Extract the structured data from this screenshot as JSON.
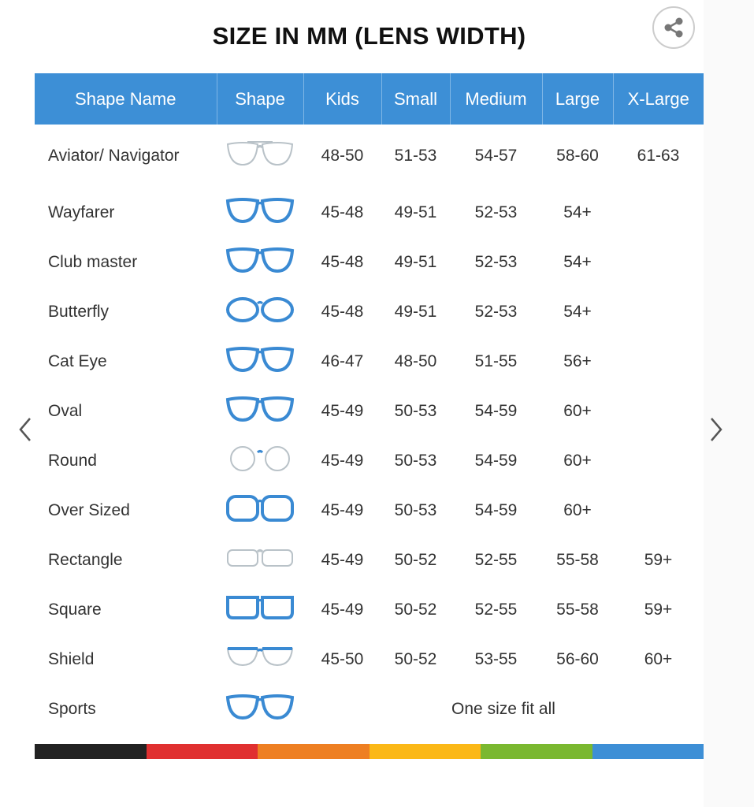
{
  "title": "SIZE IN MM (LENS WIDTH)",
  "share_icon": "share-icon",
  "nav": {
    "prev_icon": "chevron-left-icon",
    "next_icon": "chevron-right-icon"
  },
  "colors": {
    "header": "#3d8fd6",
    "frame_blue": "#3a8ad3",
    "frame_gray": "#b9c2c8"
  },
  "columns": [
    "Shape Name",
    "Shape",
    "Kids",
    "Small",
    "Medium",
    "Large",
    "X-Large"
  ],
  "rows": [
    {
      "name": "Aviator/ Navigator",
      "icon": "aviator",
      "color": "gray",
      "sizes": [
        "48-50",
        "51-53",
        "54-57",
        "58-60",
        "61-63"
      ]
    },
    {
      "name": "Wayfarer",
      "icon": "wayfarer",
      "color": "blue",
      "sizes": [
        "45-48",
        "49-51",
        "52-53",
        "54+",
        ""
      ]
    },
    {
      "name": "Club master",
      "icon": "clubmaster",
      "color": "mixed",
      "sizes": [
        "45-48",
        "49-51",
        "52-53",
        "54+",
        ""
      ]
    },
    {
      "name": "Butterfly",
      "icon": "butterfly",
      "color": "blue",
      "sizes": [
        "45-48",
        "49-51",
        "52-53",
        "54+",
        ""
      ]
    },
    {
      "name": "Cat Eye",
      "icon": "cateye",
      "color": "blue",
      "sizes": [
        "46-47",
        "48-50",
        "51-55",
        "56+",
        ""
      ]
    },
    {
      "name": "Oval",
      "icon": "oval",
      "color": "blue",
      "sizes": [
        "45-49",
        "50-53",
        "54-59",
        "60+",
        ""
      ]
    },
    {
      "name": "Round",
      "icon": "round",
      "color": "mixed",
      "sizes": [
        "45-49",
        "50-53",
        "54-59",
        "60+",
        ""
      ]
    },
    {
      "name": "Over Sized",
      "icon": "oversized",
      "color": "blue",
      "sizes": [
        "45-49",
        "50-53",
        "54-59",
        "60+",
        ""
      ]
    },
    {
      "name": "Rectangle",
      "icon": "rectangle",
      "color": "gray",
      "sizes": [
        "45-49",
        "50-52",
        "52-55",
        "55-58",
        "59+"
      ]
    },
    {
      "name": "Square",
      "icon": "square",
      "color": "blue",
      "sizes": [
        "45-49",
        "50-52",
        "52-55",
        "55-58",
        "59+"
      ]
    },
    {
      "name": "Shield",
      "icon": "shield",
      "color": "mixed",
      "sizes": [
        "45-50",
        "50-52",
        "53-55",
        "56-60",
        "60+"
      ]
    },
    {
      "name": "Sports",
      "icon": "sports",
      "color": "blue",
      "merged": "One size fit all"
    }
  ],
  "stripe_colors": [
    "#222222",
    "#e03030",
    "#ee7f22",
    "#fbb817",
    "#7ab830",
    "#3d8fd6"
  ]
}
